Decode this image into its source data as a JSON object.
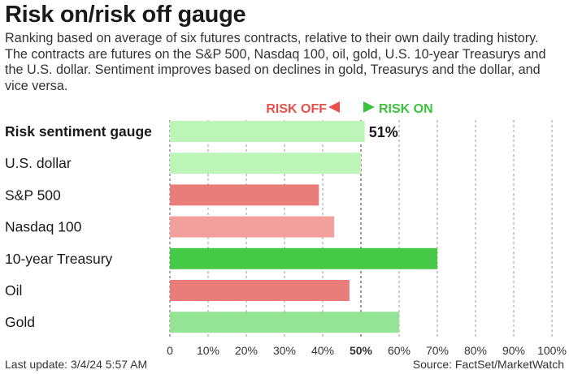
{
  "header": {
    "title": "Risk on/risk off gauge",
    "subtitle": "Ranking based on average of six futures contracts, relative to their own daily trading history. The contracts are futures on the S&P 500, Nasdaq 100, oil, gold, U.S. 10-year Treasurys and the U.S. dollar. Sentiment improves based on declines in gold, Treasurys and the dollar, and vice versa."
  },
  "legend": {
    "risk_off": "RISK OFF",
    "risk_on": "RISK ON",
    "risk_off_color": "#e8504c",
    "risk_on_color": "#3cc23c"
  },
  "footer": {
    "last_update": "Last update: 3/4/24 5:57 AM",
    "source": "Source: FactSet/MarketWatch"
  },
  "chart_data": {
    "type": "bar",
    "orientation": "horizontal",
    "categories": [
      "Risk sentiment gauge",
      "U.S. dollar",
      "S&P 500",
      "Nasdaq 100",
      "10-year Treasury",
      "Oil",
      "Gold"
    ],
    "values": [
      51,
      50,
      39,
      43,
      70,
      47,
      60
    ],
    "bar_colors": [
      "#bdf5b8",
      "#bdf5b8",
      "#e87d7a",
      "#f2a09c",
      "#46c946",
      "#e87d7a",
      "#95e495"
    ],
    "value_labels": [
      "51%",
      "",
      "",
      "",
      "",
      "",
      ""
    ],
    "bold_categories": [
      true,
      false,
      false,
      false,
      false,
      false,
      false
    ],
    "xlim": [
      0,
      100
    ],
    "xticks": [
      "0",
      "10%",
      "20%",
      "30%",
      "40%",
      "50%",
      "60%",
      "70%",
      "80%",
      "90%",
      "100%"
    ],
    "highlight_tick": "50%",
    "grid": true
  }
}
